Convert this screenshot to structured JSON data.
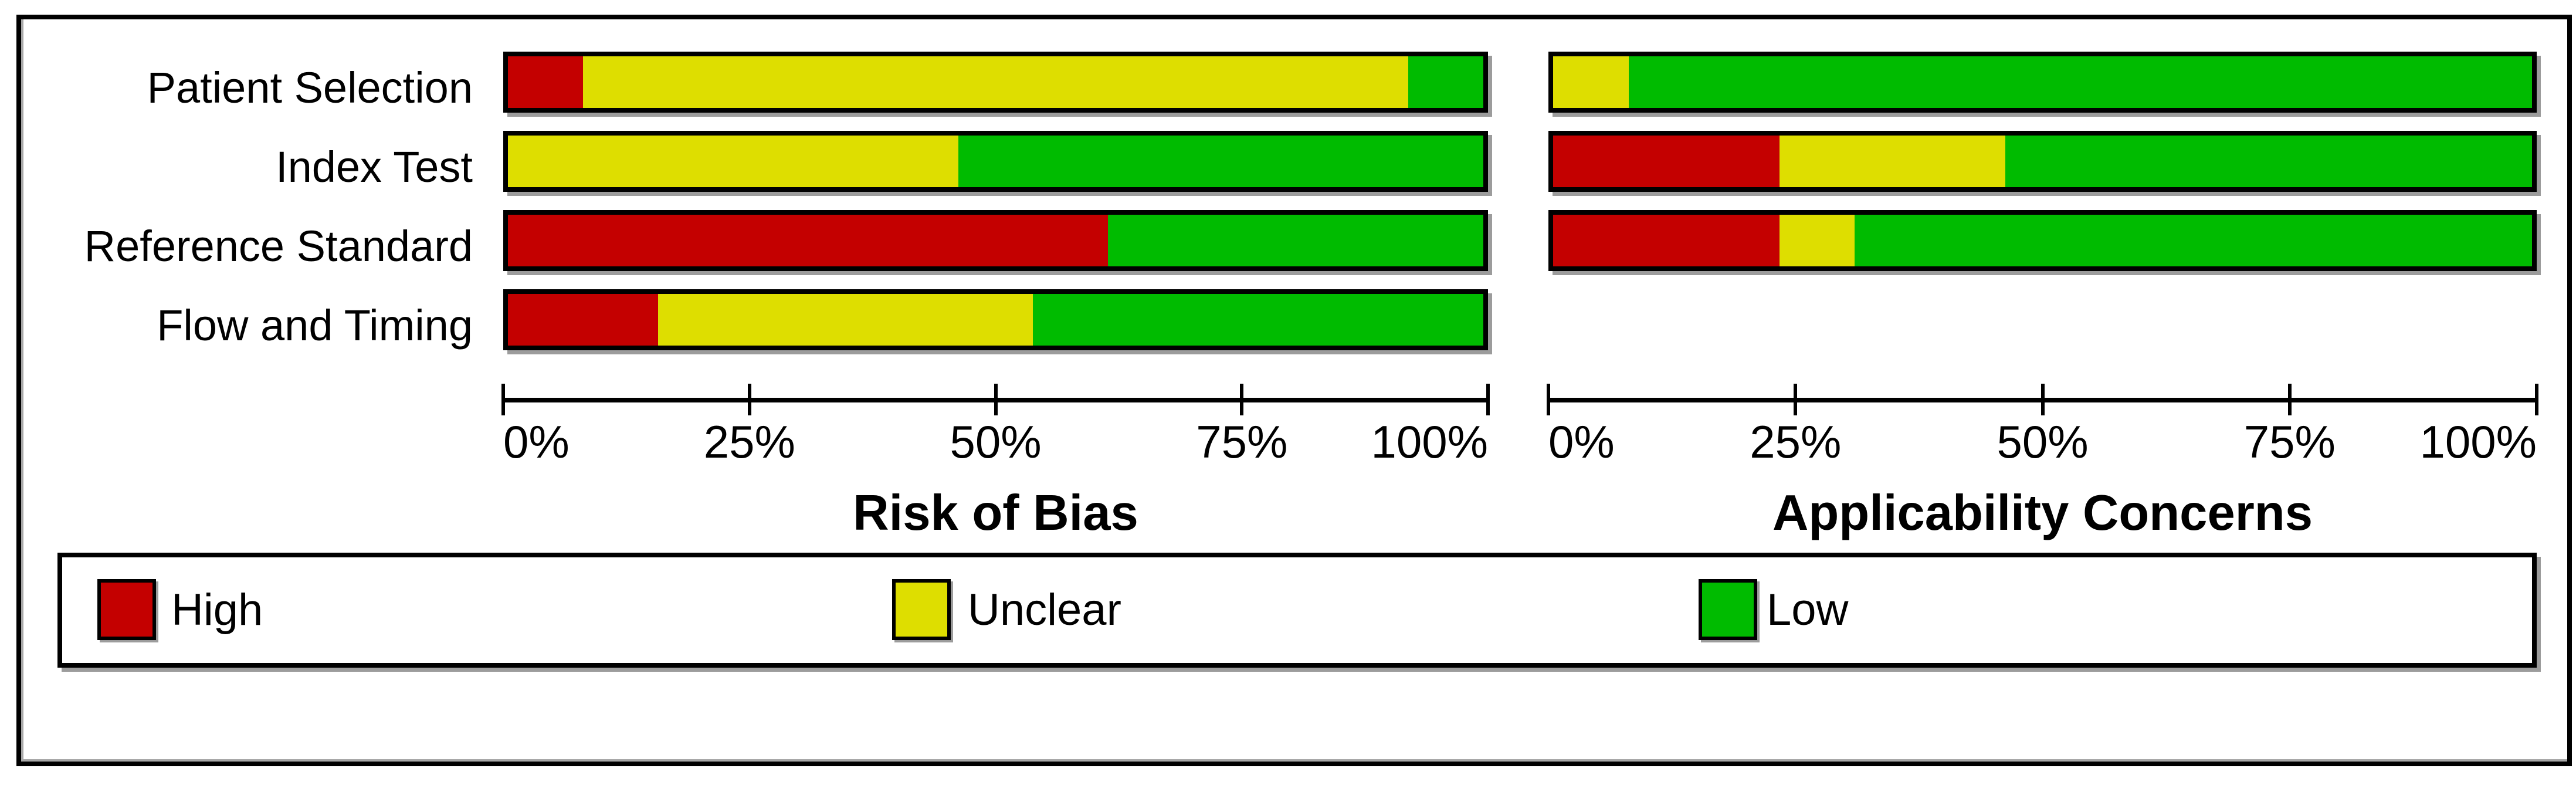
{
  "colors": {
    "high": "#C40000",
    "unclear": "#DEDE00",
    "low": "#00BB00",
    "axis": "#000000",
    "shadow": "#9C9C9C"
  },
  "chart_data": [
    {
      "type": "bar",
      "orientation": "horizontal-stacked",
      "title": "Risk of Bias",
      "categories": [
        "Patient Selection",
        "Index Test",
        "Reference Standard",
        "Flow and Timing"
      ],
      "series": [
        {
          "name": "High",
          "color_key": "high",
          "values": [
            7.7,
            0,
            61.5,
            15.4
          ]
        },
        {
          "name": "Unclear",
          "color_key": "unclear",
          "values": [
            84.6,
            46.2,
            0,
            38.5
          ]
        },
        {
          "name": "Low",
          "color_key": "low",
          "values": [
            7.7,
            53.8,
            38.5,
            46.2
          ]
        }
      ],
      "x_ticks": [
        "0%",
        "25%",
        "50%",
        "75%",
        "100%"
      ],
      "xlim": [
        0,
        100
      ],
      "grid": false,
      "unit": "percent of studies"
    },
    {
      "type": "bar",
      "orientation": "horizontal-stacked",
      "title": "Applicability Concerns",
      "categories": [
        "Patient Selection",
        "Index Test",
        "Reference Standard",
        "Flow and Timing"
      ],
      "series": [
        {
          "name": "High",
          "color_key": "high",
          "values": [
            0,
            23.1,
            23.1,
            0
          ]
        },
        {
          "name": "Unclear",
          "color_key": "unclear",
          "values": [
            7.7,
            23.1,
            7.7,
            0
          ]
        },
        {
          "name": "Low",
          "color_key": "low",
          "values": [
            92.3,
            53.8,
            69.2,
            0
          ]
        }
      ],
      "x_ticks": [
        "0%",
        "25%",
        "50%",
        "75%",
        "100%"
      ],
      "xlim": [
        0,
        100
      ],
      "grid": false,
      "unit": "percent of studies"
    }
  ],
  "legend": {
    "position": "bottom-box",
    "items": [
      {
        "label": "High",
        "color_key": "high"
      },
      {
        "label": "Unclear",
        "color_key": "unclear"
      },
      {
        "label": "Low",
        "color_key": "low"
      }
    ]
  }
}
